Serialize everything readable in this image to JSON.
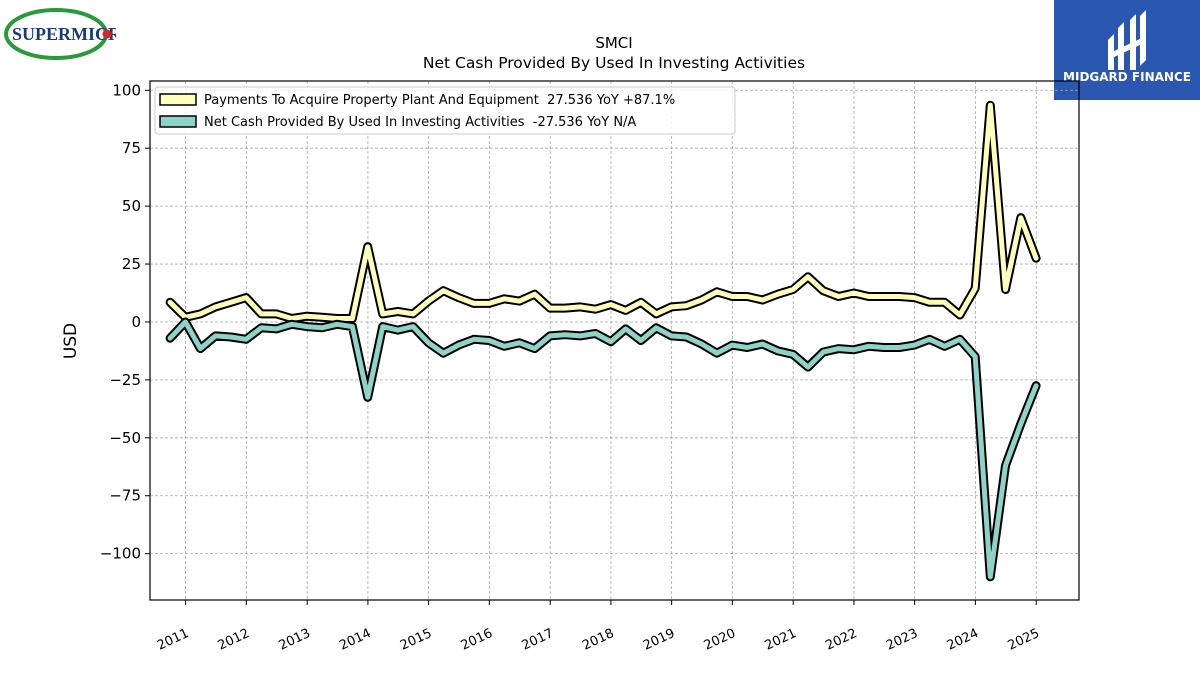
{
  "company_logo": {
    "text": "SUPERMICR",
    "colors": {
      "text": "#1b3a7a",
      "ring": "#2a9a3c",
      "dot": "#d8232a"
    }
  },
  "brand_logo": {
    "text": "MIDGARD FINANCE",
    "background": "#2a57b0"
  },
  "chart_data": {
    "type": "line",
    "title": "SMCI",
    "subtitle": "Net Cash Provided By Used In Investing Activities",
    "ylabel": "USD",
    "xlabel": "",
    "x_ticks": [
      "2011",
      "2012",
      "2013",
      "2014",
      "2015",
      "2016",
      "2017",
      "2018",
      "2019",
      "2020",
      "2021",
      "2022",
      "2023",
      "2024",
      "2025"
    ],
    "xlim": [
      "2010-06-01",
      "2025-09-15"
    ],
    "ylim": [
      -120,
      104
    ],
    "y_ticks": [
      -100,
      -75,
      -50,
      -25,
      0,
      25,
      50,
      75,
      100
    ],
    "grid": true,
    "legend_position": "top-left",
    "series": [
      {
        "name": "Payments To Acquire Property Plant And Equipment  27.536 YoY +87.1%",
        "color": "#ffffbb",
        "points": [
          [
            "2010-09-30",
            8.5
          ],
          [
            "2010-12-31",
            2.0
          ],
          [
            "2011-03-31",
            3.5
          ],
          [
            "2011-06-30",
            6.5
          ],
          [
            "2011-09-30",
            8.5
          ],
          [
            "2011-12-31",
            10.5
          ],
          [
            "2012-03-31",
            3.5
          ],
          [
            "2012-06-30",
            3.5
          ],
          [
            "2012-09-30",
            1.5
          ],
          [
            "2012-12-31",
            2.5
          ],
          [
            "2013-03-31",
            2.0
          ],
          [
            "2013-06-30",
            1.5
          ],
          [
            "2013-09-30",
            1.5
          ],
          [
            "2013-12-31",
            32.5
          ],
          [
            "2014-03-31",
            3.5
          ],
          [
            "2014-06-30",
            4.5
          ],
          [
            "2014-09-30",
            3.5
          ],
          [
            "2014-12-31",
            9.0
          ],
          [
            "2015-03-31",
            13.5
          ],
          [
            "2015-06-30",
            10.5
          ],
          [
            "2015-09-30",
            8.0
          ],
          [
            "2015-12-31",
            8.0
          ],
          [
            "2016-03-31",
            10.0
          ],
          [
            "2016-06-30",
            9.0
          ],
          [
            "2016-09-30",
            12.0
          ],
          [
            "2016-12-31",
            6.0
          ],
          [
            "2017-03-31",
            6.0
          ],
          [
            "2017-06-30",
            6.5
          ],
          [
            "2017-09-30",
            5.5
          ],
          [
            "2017-12-31",
            7.5
          ],
          [
            "2018-03-31",
            5.0
          ],
          [
            "2018-06-30",
            8.5
          ],
          [
            "2018-09-30",
            3.5
          ],
          [
            "2018-12-31",
            6.5
          ],
          [
            "2019-03-31",
            7.0
          ],
          [
            "2019-06-30",
            9.5
          ],
          [
            "2019-09-30",
            13.0
          ],
          [
            "2019-12-31",
            11.0
          ],
          [
            "2020-03-31",
            11.0
          ],
          [
            "2020-06-30",
            9.5
          ],
          [
            "2020-09-30",
            12.0
          ],
          [
            "2020-12-31",
            14.0
          ],
          [
            "2021-03-31",
            19.5
          ],
          [
            "2021-06-30",
            13.5
          ],
          [
            "2021-09-30",
            11.0
          ],
          [
            "2021-12-31",
            12.5
          ],
          [
            "2022-03-31",
            11.0
          ],
          [
            "2022-06-30",
            11.0
          ],
          [
            "2022-09-30",
            11.0
          ],
          [
            "2022-12-31",
            10.5
          ],
          [
            "2023-03-31",
            8.5
          ],
          [
            "2023-06-30",
            8.5
          ],
          [
            "2023-09-30",
            3.0
          ],
          [
            "2023-12-31",
            14.5
          ],
          [
            "2024-03-31",
            93.5
          ],
          [
            "2024-06-30",
            14.0
          ],
          [
            "2024-09-30",
            45.0
          ],
          [
            "2024-12-31",
            27.5
          ]
        ]
      },
      {
        "name": "Net Cash Provided By Used In Investing Activities  -27.536 YoY N/A",
        "color": "#8dd3c7",
        "points": [
          [
            "2010-09-30",
            -7.0
          ],
          [
            "2010-12-31",
            0.0
          ],
          [
            "2011-03-31",
            -11.5
          ],
          [
            "2011-06-30",
            -6.0
          ],
          [
            "2011-09-30",
            -6.5
          ],
          [
            "2011-12-31",
            -7.5
          ],
          [
            "2012-03-31",
            -2.5
          ],
          [
            "2012-06-30",
            -3.0
          ],
          [
            "2012-09-30",
            -1.0
          ],
          [
            "2012-12-31",
            -2.0
          ],
          [
            "2013-03-31",
            -2.5
          ],
          [
            "2013-06-30",
            -1.0
          ],
          [
            "2013-09-30",
            -2.0
          ],
          [
            "2013-12-31",
            -32.5
          ],
          [
            "2014-03-31",
            -2.0
          ],
          [
            "2014-06-30",
            -3.5
          ],
          [
            "2014-09-30",
            -2.0
          ],
          [
            "2014-12-31",
            -9.0
          ],
          [
            "2015-03-31",
            -13.5
          ],
          [
            "2015-06-30",
            -10.0
          ],
          [
            "2015-09-30",
            -7.5
          ],
          [
            "2015-12-31",
            -8.0
          ],
          [
            "2016-03-31",
            -10.5
          ],
          [
            "2016-06-30",
            -9.0
          ],
          [
            "2016-09-30",
            -11.5
          ],
          [
            "2016-12-31",
            -6.0
          ],
          [
            "2017-03-31",
            -5.5
          ],
          [
            "2017-06-30",
            -6.0
          ],
          [
            "2017-09-30",
            -5.0
          ],
          [
            "2017-12-31",
            -8.5
          ],
          [
            "2018-03-31",
            -3.0
          ],
          [
            "2018-06-30",
            -8.0
          ],
          [
            "2018-09-30",
            -2.5
          ],
          [
            "2018-12-31",
            -6.0
          ],
          [
            "2019-03-31",
            -6.5
          ],
          [
            "2019-06-30",
            -9.5
          ],
          [
            "2019-09-30",
            -13.5
          ],
          [
            "2019-12-31",
            -10.0
          ],
          [
            "2020-03-31",
            -11.0
          ],
          [
            "2020-06-30",
            -9.5
          ],
          [
            "2020-09-30",
            -12.5
          ],
          [
            "2020-12-31",
            -14.0
          ],
          [
            "2021-03-31",
            -19.5
          ],
          [
            "2021-06-30",
            -13.0
          ],
          [
            "2021-09-30",
            -11.5
          ],
          [
            "2021-12-31",
            -12.0
          ],
          [
            "2022-03-31",
            -10.5
          ],
          [
            "2022-06-30",
            -11.0
          ],
          [
            "2022-09-30",
            -11.0
          ],
          [
            "2022-12-31",
            -10.0
          ],
          [
            "2023-03-31",
            -7.5
          ],
          [
            "2023-06-30",
            -10.5
          ],
          [
            "2023-09-30",
            -7.5
          ],
          [
            "2023-12-31",
            -15.0
          ],
          [
            "2024-03-31",
            -110.0
          ],
          [
            "2024-06-30",
            -62.0
          ],
          [
            "2024-09-30",
            -44.0
          ],
          [
            "2024-12-31",
            -27.5
          ]
        ]
      }
    ]
  }
}
